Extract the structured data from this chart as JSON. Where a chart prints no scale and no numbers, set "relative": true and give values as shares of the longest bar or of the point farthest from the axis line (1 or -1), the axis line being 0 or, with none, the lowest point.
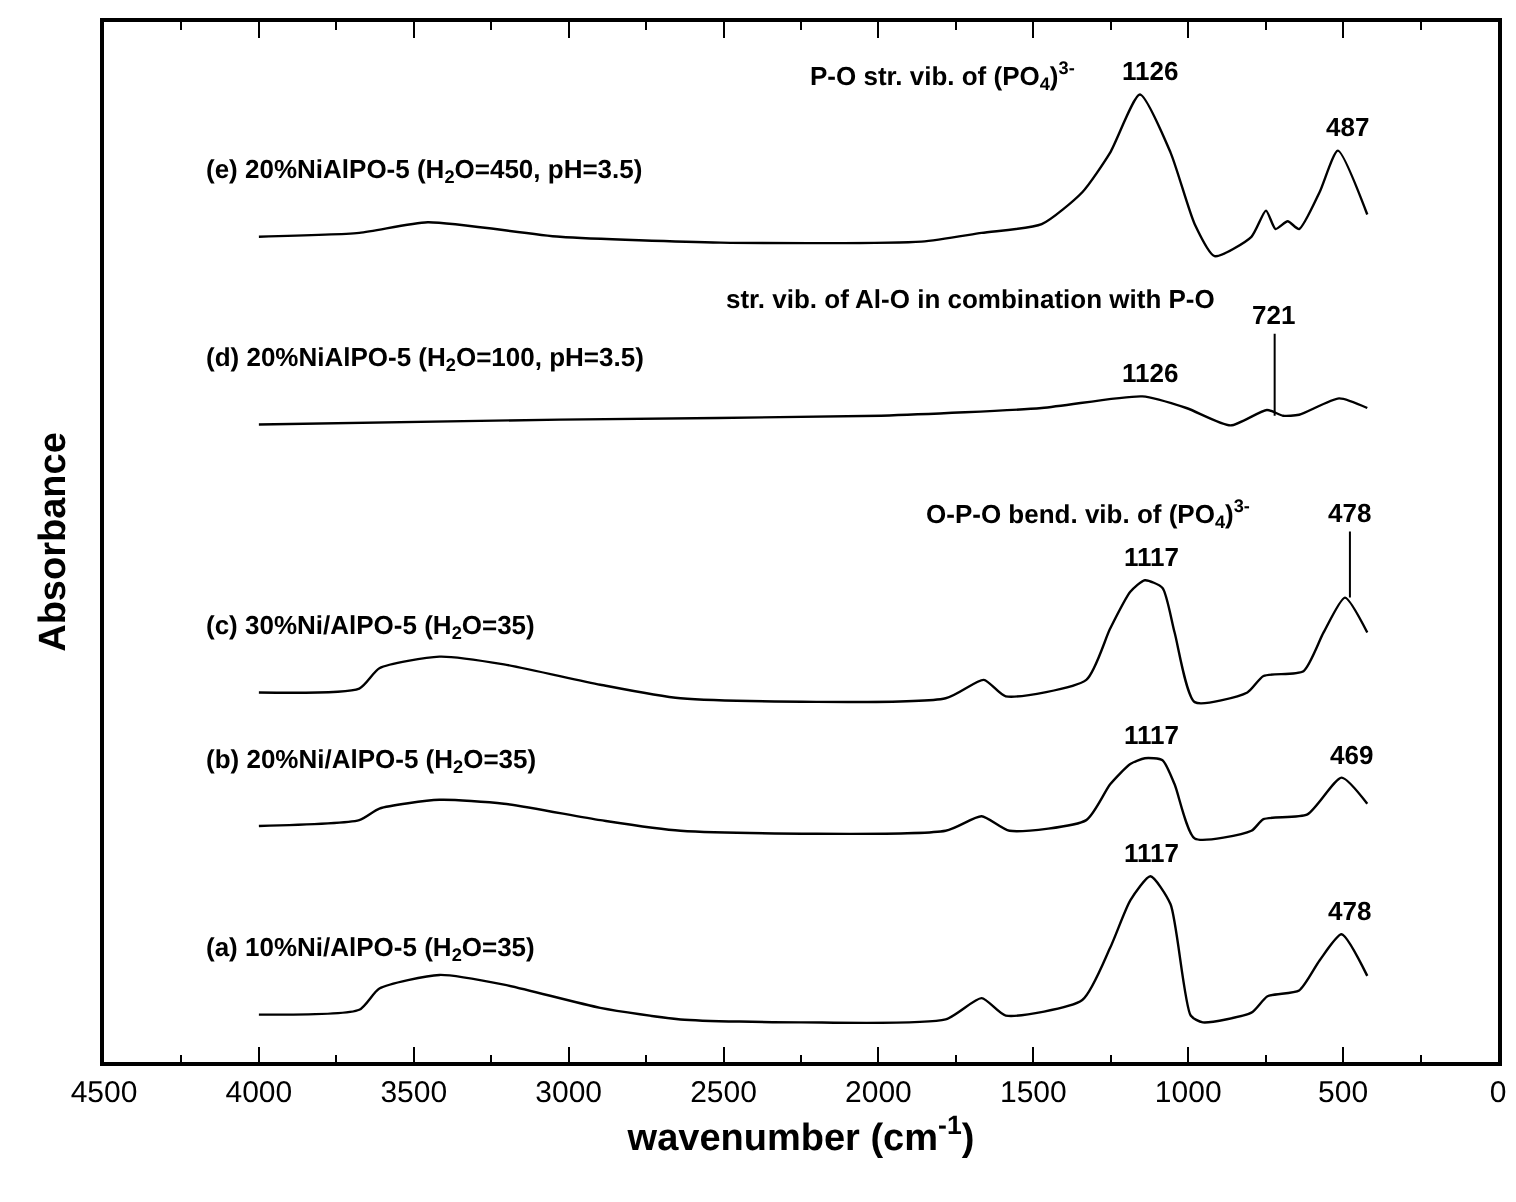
{
  "chart_data": {
    "type": "line",
    "relative": true,
    "xlabel": "wavenumber (cm$^{-1}$)",
    "ylabel": "Absorbance",
    "xlim": [
      4500,
      0
    ],
    "xticks": [
      4500,
      4000,
      3500,
      3000,
      2500,
      2000,
      1500,
      1000,
      500,
      0
    ],
    "tick_labels": "x",
    "legend": false,
    "marker": "none",
    "line_style": "solid",
    "series": [
      {
        "name": "(a) 10%Ni/AlPO-5 (H$_{2}$O=35)",
        "color": "#000000",
        "x": [
          4000,
          3676,
          3611,
          3417,
          3209,
          2898,
          2639,
          2250,
          1783,
          1667,
          1589,
          1342,
          1252,
          1187,
          1122,
          1057,
          992,
          953,
          796,
          744,
          642,
          576,
          505,
          422
        ],
        "values": [
          0.049,
          0.054,
          0.076,
          0.09,
          0.08,
          0.056,
          0.044,
          0.041,
          0.044,
          0.066,
          0.048,
          0.064,
          0.118,
          0.167,
          0.192,
          0.163,
          0.048,
          0.041,
          0.051,
          0.068,
          0.074,
          0.105,
          0.132,
          0.089
        ]
      },
      {
        "name": "(b) 20%Ni/AlPO-5 (H$_{2}$O=35)",
        "color": "#000000",
        "x": [
          4000,
          3676,
          3611,
          3417,
          3209,
          2898,
          2639,
          1783,
          1667,
          1577,
          1329,
          1252,
          1187,
          1140,
          1083,
          1044,
          979,
          796,
          757,
          615,
          505,
          422
        ],
        "values": [
          0.244,
          0.25,
          0.262,
          0.271,
          0.267,
          0.25,
          0.239,
          0.239,
          0.254,
          0.239,
          0.25,
          0.287,
          0.308,
          0.314,
          0.312,
          0.287,
          0.231,
          0.239,
          0.251,
          0.256,
          0.294,
          0.267
        ]
      },
      {
        "name": "(c) 30%Ni/AlPO-5 (H$_{2}$O=35)",
        "color": "#000000",
        "x": [
          4000,
          3676,
          3611,
          3417,
          3209,
          2898,
          2639,
          1783,
          1660,
          1589,
          1329,
          1252,
          1187,
          1140,
          1083,
          1044,
          979,
          809,
          757,
          628,
          563,
          494,
          422
        ],
        "values": [
          0.382,
          0.386,
          0.407,
          0.419,
          0.411,
          0.39,
          0.376,
          0.376,
          0.395,
          0.378,
          0.395,
          0.448,
          0.486,
          0.498,
          0.49,
          0.444,
          0.372,
          0.382,
          0.399,
          0.404,
          0.444,
          0.48,
          0.444
        ]
      },
      {
        "name": "(d) 20%NiAlPO-5 (H$_{2}$O=100, pH=3.5)",
        "color": "#000000",
        "x": [
          4000,
          3028,
          1991,
          1473,
          1148,
          1006,
          863,
          746,
          694,
          642,
          513,
          422
        ],
        "values": [
          0.659,
          0.664,
          0.668,
          0.676,
          0.688,
          0.676,
          0.658,
          0.674,
          0.668,
          0.669,
          0.686,
          0.676
        ]
      },
      {
        "name": "(e) 20%NiAlPO-5 (H$_{2}$O=450, pH=3.5)",
        "color": "#000000",
        "x": [
          4000,
          3676,
          3455,
          3028,
          2509,
          1861,
          1667,
          1473,
          1342,
          1252,
          1156,
          1057,
          979,
          915,
          796,
          749,
          718,
          679,
          642,
          576,
          517,
          422
        ],
        "values": [
          0.853,
          0.857,
          0.868,
          0.853,
          0.847,
          0.848,
          0.857,
          0.866,
          0.899,
          0.94,
          1.0,
          0.94,
          0.866,
          0.833,
          0.853,
          0.88,
          0.861,
          0.869,
          0.861,
          0.899,
          0.942,
          0.876
        ]
      }
    ],
    "annotations": [
      {
        "text": "1126",
        "x": 1126,
        "y": 1.0
      },
      {
        "text": "487",
        "x": 487,
        "y": 0.942
      },
      "P-O str. vib. of (PO$_{4}$)$^{3-}$",
      {
        "text": "721",
        "x": 721,
        "y": 0.668
      },
      "str. vib. of Al-O in combination with P-O",
      {
        "text": "1126",
        "x": 1126,
        "y": 0.688
      },
      {
        "text": "478",
        "x": 478,
        "y": 0.48
      },
      "O-P-O bend. vib. of (PO$_{4}$)$^{3-}$",
      {
        "text": "1117",
        "x": 1117,
        "y": 0.498
      },
      {
        "text": "469",
        "x": 469,
        "y": 0.294
      },
      {
        "text": "1117",
        "x": 1117,
        "y": 0.314
      },
      {
        "text": "1117",
        "x": 1117,
        "y": 0.192
      },
      {
        "text": "478",
        "x": 478,
        "y": 0.132
      }
    ]
  }
}
